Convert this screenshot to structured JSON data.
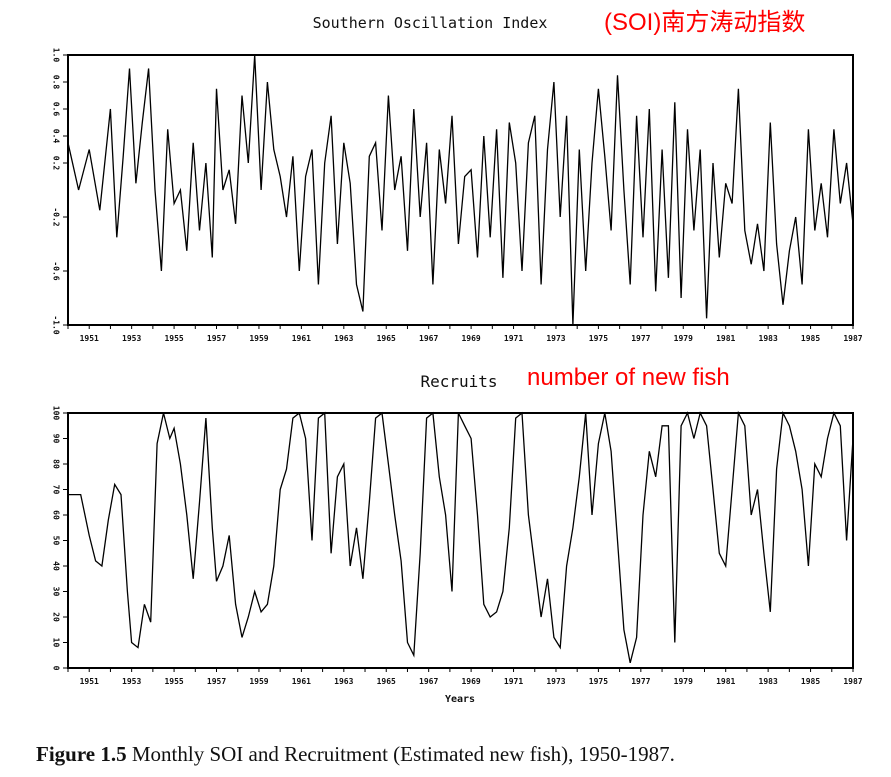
{
  "annotations": {
    "soi_note": "(SOI)南方涛动指数",
    "rec_note": "number of new fish",
    "color": "#ff0000"
  },
  "caption": {
    "label": "Figure 1.5",
    "text": "Monthly SOI and Recruitment (Estimated new fish), 1950-1987."
  },
  "chart_data": [
    {
      "type": "line",
      "title": "Southern Oscillation Index",
      "xlabel": "",
      "ylabel": "",
      "xlim": [
        1950,
        1987
      ],
      "ylim": [
        -1.0,
        1.0
      ],
      "grid": false,
      "xticks": [
        "1951",
        "1953",
        "1955",
        "1957",
        "1959",
        "1961",
        "1963",
        "1965",
        "1967",
        "1969",
        "1971",
        "1973",
        "1975",
        "1977",
        "1979",
        "1981",
        "1983",
        "1985",
        "1987"
      ],
      "yticks": [
        "-1.0",
        "-0.6",
        "-0.2",
        "0.2",
        "0.4",
        "0.6",
        "0.8",
        "1.0"
      ],
      "ytick_values": [
        -1.0,
        -0.6,
        -0.2,
        0.2,
        0.4,
        0.6,
        0.8,
        1.0
      ],
      "series": [
        {
          "x": [
            1950.0,
            1950.5,
            1951.0,
            1951.5,
            1952.0,
            1952.3,
            1952.6,
            1952.9,
            1953.2,
            1953.5,
            1953.8,
            1954.1,
            1954.4,
            1954.7,
            1955.0,
            1955.3,
            1955.6,
            1955.9,
            1956.2,
            1956.5,
            1956.8,
            1957.0,
            1957.3,
            1957.6,
            1957.9,
            1958.2,
            1958.5,
            1958.8,
            1959.1,
            1959.4,
            1959.7,
            1960.0,
            1960.3,
            1960.6,
            1960.9,
            1961.2,
            1961.5,
            1961.8,
            1962.1,
            1962.4,
            1962.7,
            1963.0,
            1963.3,
            1963.6,
            1963.9,
            1964.2,
            1964.5,
            1964.8,
            1965.1,
            1965.4,
            1965.7,
            1966.0,
            1966.3,
            1966.6,
            1966.9,
            1967.2,
            1967.5,
            1967.8,
            1968.1,
            1968.4,
            1968.7,
            1969.0,
            1969.3,
            1969.6,
            1969.9,
            1970.2,
            1970.5,
            1970.8,
            1971.1,
            1971.4,
            1971.7,
            1972.0,
            1972.3,
            1972.6,
            1972.9,
            1973.2,
            1973.5,
            1973.8,
            1974.1,
            1974.4,
            1974.7,
            1975.0,
            1975.3,
            1975.6,
            1975.9,
            1976.2,
            1976.5,
            1976.8,
            1977.1,
            1977.4,
            1977.7,
            1978.0,
            1978.3,
            1978.6,
            1978.9,
            1979.2,
            1979.5,
            1979.8,
            1980.1,
            1980.4,
            1980.7,
            1981.0,
            1981.3,
            1981.6,
            1981.9,
            1982.2,
            1982.5,
            1982.8,
            1983.1,
            1983.4,
            1983.7,
            1984.0,
            1984.3,
            1984.6,
            1984.9,
            1985.2,
            1985.5,
            1985.8,
            1986.1,
            1986.4,
            1986.7,
            1987.0
          ],
          "values": [
            0.35,
            0.0,
            0.3,
            -0.15,
            0.6,
            -0.35,
            0.25,
            0.9,
            0.05,
            0.5,
            0.9,
            0.0,
            -0.6,
            0.45,
            -0.1,
            0.0,
            -0.45,
            0.35,
            -0.3,
            0.2,
            -0.5,
            0.75,
            0.0,
            0.15,
            -0.25,
            0.7,
            0.2,
            1.0,
            0.0,
            0.8,
            0.3,
            0.1,
            -0.2,
            0.25,
            -0.6,
            0.1,
            0.3,
            -0.7,
            0.2,
            0.55,
            -0.4,
            0.35,
            0.05,
            -0.7,
            -0.9,
            0.25,
            0.35,
            -0.3,
            0.7,
            0.0,
            0.25,
            -0.45,
            0.6,
            -0.2,
            0.35,
            -0.7,
            0.3,
            -0.1,
            0.55,
            -0.4,
            0.1,
            0.15,
            -0.5,
            0.4,
            -0.35,
            0.45,
            -0.65,
            0.5,
            0.2,
            -0.6,
            0.35,
            0.55,
            -0.7,
            0.3,
            0.8,
            -0.2,
            0.55,
            -1.0,
            0.3,
            -0.6,
            0.2,
            0.75,
            0.25,
            -0.3,
            0.85,
            0.0,
            -0.7,
            0.55,
            -0.35,
            0.6,
            -0.75,
            0.3,
            -0.65,
            0.65,
            -0.8,
            0.45,
            -0.3,
            0.3,
            -0.95,
            0.2,
            -0.5,
            0.05,
            -0.1,
            0.75,
            -0.3,
            -0.55,
            -0.25,
            -0.6,
            0.5,
            -0.4,
            -0.85,
            -0.45,
            -0.2,
            -0.7,
            0.45,
            -0.3,
            0.05,
            -0.35,
            0.45,
            -0.1,
            0.2,
            -0.25
          ]
        }
      ]
    },
    {
      "type": "line",
      "title": "Recruits",
      "xlabel": "Years",
      "ylabel": "",
      "xlim": [
        1950,
        1987
      ],
      "ylim": [
        0,
        100
      ],
      "grid": false,
      "xticks": [
        "1951",
        "1953",
        "1955",
        "1957",
        "1959",
        "1961",
        "1963",
        "1965",
        "1967",
        "1969",
        "1971",
        "1973",
        "1975",
        "1977",
        "1979",
        "1981",
        "1983",
        "1985",
        "1987"
      ],
      "yticks": [
        "0",
        "10",
        "20",
        "30",
        "40",
        "50",
        "60",
        "70",
        "80",
        "90",
        "100"
      ],
      "ytick_values": [
        0,
        10,
        20,
        30,
        40,
        50,
        60,
        70,
        80,
        90,
        100
      ],
      "series": [
        {
          "x": [
            1950.0,
            1950.6,
            1951.0,
            1951.3,
            1951.6,
            1951.9,
            1952.2,
            1952.5,
            1952.8,
            1953.0,
            1953.3,
            1953.6,
            1953.9,
            1954.2,
            1954.5,
            1954.8,
            1955.0,
            1955.3,
            1955.6,
            1955.9,
            1956.2,
            1956.5,
            1956.8,
            1957.0,
            1957.3,
            1957.6,
            1957.9,
            1958.2,
            1958.5,
            1958.8,
            1959.1,
            1959.4,
            1959.7,
            1960.0,
            1960.3,
            1960.6,
            1960.9,
            1961.2,
            1961.5,
            1961.8,
            1962.1,
            1962.4,
            1962.7,
            1963.0,
            1963.3,
            1963.6,
            1963.9,
            1964.2,
            1964.5,
            1964.8,
            1965.1,
            1965.4,
            1965.7,
            1966.0,
            1966.3,
            1966.6,
            1966.9,
            1967.2,
            1967.5,
            1967.8,
            1968.1,
            1968.4,
            1968.7,
            1969.0,
            1969.3,
            1969.6,
            1969.9,
            1970.2,
            1970.5,
            1970.8,
            1971.1,
            1971.4,
            1971.7,
            1972.0,
            1972.3,
            1972.6,
            1972.9,
            1973.2,
            1973.5,
            1973.8,
            1974.1,
            1974.4,
            1974.7,
            1975.0,
            1975.3,
            1975.6,
            1975.9,
            1976.2,
            1976.5,
            1976.8,
            1977.1,
            1977.4,
            1977.7,
            1978.0,
            1978.3,
            1978.6,
            1978.9,
            1979.2,
            1979.5,
            1979.8,
            1980.1,
            1980.4,
            1980.7,
            1981.0,
            1981.3,
            1981.6,
            1981.9,
            1982.2,
            1982.5,
            1982.8,
            1983.1,
            1983.4,
            1983.7,
            1984.0,
            1984.3,
            1984.6,
            1984.9,
            1985.2,
            1985.5,
            1985.8,
            1986.1,
            1986.4,
            1986.7,
            1987.0
          ],
          "values": [
            68,
            68,
            52,
            42,
            40,
            58,
            72,
            68,
            30,
            10,
            8,
            25,
            18,
            88,
            100,
            90,
            94,
            80,
            60,
            35,
            65,
            98,
            55,
            34,
            40,
            52,
            25,
            12,
            20,
            30,
            22,
            25,
            40,
            70,
            78,
            98,
            100,
            90,
            50,
            98,
            100,
            45,
            75,
            80,
            40,
            55,
            35,
            65,
            98,
            100,
            80,
            60,
            42,
            10,
            5,
            45,
            98,
            100,
            75,
            60,
            30,
            100,
            95,
            90,
            60,
            25,
            20,
            22,
            30,
            55,
            98,
            100,
            60,
            40,
            20,
            35,
            12,
            8,
            40,
            55,
            75,
            100,
            60,
            88,
            100,
            85,
            50,
            15,
            2,
            12,
            60,
            85,
            75,
            95,
            95,
            10,
            95,
            100,
            90,
            100,
            95,
            70,
            45,
            40,
            70,
            100,
            95,
            60,
            70,
            45,
            22,
            78,
            100,
            95,
            85,
            70,
            40,
            80,
            75,
            90,
            100,
            95,
            50,
            90
          ]
        }
      ]
    }
  ]
}
